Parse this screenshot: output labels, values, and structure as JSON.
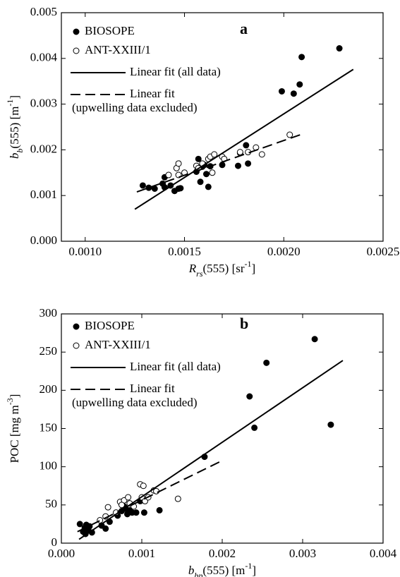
{
  "chart_data": [
    {
      "type": "scatter",
      "annotation": "a",
      "xlabel": [
        {
          "text": "R",
          "style": "italic"
        },
        {
          "text": "rs",
          "style": "sub"
        },
        {
          "text": "(555)  [sr",
          "style": "normal"
        },
        {
          "text": "-1",
          "style": "sup"
        },
        {
          "text": "]",
          "style": "normal"
        }
      ],
      "ylabel": [
        {
          "text": "b",
          "style": "italic"
        },
        {
          "text": "b",
          "style": "sub"
        },
        {
          "text": "(555)  [m",
          "style": "normal"
        },
        {
          "text": "-1",
          "style": "sup"
        },
        {
          "text": "]",
          "style": "normal"
        }
      ],
      "xlim": [
        0.00088,
        0.0025
      ],
      "xticks": [
        {
          "value": 0.001,
          "label": "0.0010"
        },
        {
          "value": 0.0015,
          "label": "0.0015"
        },
        {
          "value": 0.002,
          "label": "0.0020"
        },
        {
          "value": 0.0025,
          "label": "0.0025"
        }
      ],
      "ylim": [
        0,
        0.005
      ],
      "yticks": [
        {
          "value": 0,
          "label": "0.000"
        },
        {
          "value": 0.001,
          "label": "0.001"
        },
        {
          "value": 0.002,
          "label": "0.002"
        },
        {
          "value": 0.003,
          "label": "0.003"
        },
        {
          "value": 0.004,
          "label": "0.004"
        },
        {
          "value": 0.005,
          "label": "0.005"
        }
      ],
      "series": [
        {
          "name": "BIOSOPE",
          "marker": "filled",
          "color": "#000000",
          "x": [
            0.00129,
            0.00132,
            0.00135,
            0.00139,
            0.0014,
            0.00143,
            0.00145,
            0.00147,
            0.00148,
            0.00156,
            0.00157,
            0.00158,
            0.00159,
            0.0016,
            0.00161,
            0.00162,
            0.00163,
            0.00169,
            0.00177,
            0.00178,
            0.00181,
            0.00182,
            0.00199,
            0.00205,
            0.00208,
            0.00209,
            0.00228,
            0.0014
          ],
          "values": [
            0.00122,
            0.00117,
            0.00115,
            0.00126,
            0.00118,
            0.00122,
            0.0011,
            0.00115,
            0.00116,
            0.00152,
            0.0018,
            0.0013,
            0.00163,
            0.00167,
            0.00147,
            0.00119,
            0.00164,
            0.00167,
            0.00165,
            0.00193,
            0.0021,
            0.0017,
            0.00328,
            0.00323,
            0.00343,
            0.00403,
            0.00422,
            0.0014
          ]
        },
        {
          "name": "ANT-XXIII/1",
          "marker": "open",
          "color": "#000000",
          "x": [
            0.00142,
            0.00146,
            0.00147,
            0.00147,
            0.0015,
            0.00156,
            0.00157,
            0.00159,
            0.00162,
            0.00163,
            0.00164,
            0.00165,
            0.00169,
            0.0017,
            0.00178,
            0.00182,
            0.00186,
            0.00189,
            0.00203
          ],
          "values": [
            0.00145,
            0.0016,
            0.00145,
            0.0017,
            0.0015,
            0.00165,
            0.0016,
            0.0017,
            0.0018,
            0.00185,
            0.0015,
            0.0019,
            0.00185,
            0.0018,
            0.00195,
            0.00195,
            0.00205,
            0.0019,
            0.00233
          ]
        }
      ],
      "fits": [
        {
          "name_lines": [
            "Linear fit (all data)"
          ],
          "dash": "solid",
          "color": "#000000",
          "x": [
            0.00125,
            0.00235
          ],
          "values": [
            0.0007,
            0.00376
          ]
        },
        {
          "name_lines": [
            "Linear fit",
            "(upwelling data excluded)"
          ],
          "dash": "dashed",
          "color": "#000000",
          "x": [
            0.00126,
            0.00209
          ],
          "values": [
            0.00108,
            0.00234
          ]
        }
      ]
    },
    {
      "type": "scatter",
      "annotation": "b",
      "xlabel": [
        {
          "text": "b",
          "style": "italic"
        },
        {
          "text": "bp",
          "style": "sub"
        },
        {
          "text": "(555)  [m",
          "style": "normal"
        },
        {
          "text": "-1",
          "style": "sup"
        },
        {
          "text": "]",
          "style": "normal"
        }
      ],
      "ylabel": [
        {
          "text": "POC  [mg m",
          "style": "normal"
        },
        {
          "text": "-3",
          "style": "sup"
        },
        {
          "text": "]",
          "style": "normal"
        }
      ],
      "xlim": [
        0,
        0.004
      ],
      "xticks": [
        {
          "value": 0,
          "label": "0.000"
        },
        {
          "value": 0.001,
          "label": "0.001"
        },
        {
          "value": 0.002,
          "label": "0.002"
        },
        {
          "value": 0.003,
          "label": "0.003"
        },
        {
          "value": 0.004,
          "label": "0.004"
        }
      ],
      "ylim": [
        0,
        300
      ],
      "yticks": [
        0,
        50,
        100,
        150,
        200,
        250,
        300
      ],
      "series": [
        {
          "name": "BIOSOPE",
          "marker": "filled",
          "color": "#000000",
          "x": [
            0.00023,
            0.00027,
            0.00029,
            0.00031,
            0.00033,
            0.00035,
            0.00038,
            0.0005,
            0.00055,
            0.0006,
            0.0007,
            0.00075,
            0.00078,
            0.0008,
            0.00082,
            0.00085,
            0.00088,
            0.00093,
            0.00098,
            0.00103,
            0.00122,
            0.00178,
            0.00234,
            0.0024,
            0.00255,
            0.00315,
            0.00335,
            0.0003
          ],
          "values": [
            25,
            15,
            20,
            24,
            18,
            22,
            14,
            23,
            19,
            28,
            36,
            42,
            48,
            45,
            38,
            43,
            40,
            40,
            55,
            40,
            43,
            113,
            192,
            151,
            236,
            267,
            155,
            12
          ]
        },
        {
          "name": "ANT-XXIII/1",
          "marker": "open",
          "color": "#000000",
          "x": [
            0.00048,
            0.00055,
            0.00058,
            0.00068,
            0.00073,
            0.00078,
            0.00083,
            0.00085,
            0.0009,
            0.00098,
            0.001,
            0.00102,
            0.00104,
            0.00108,
            0.00115,
            0.00118,
            0.00145,
            0.00075
          ],
          "values": [
            30,
            35,
            47,
            40,
            54,
            56,
            60,
            52,
            48,
            77,
            60,
            75,
            55,
            60,
            69,
            68,
            58,
            50
          ]
        }
      ],
      "fits": [
        {
          "name_lines": [
            "Linear fit (all data)"
          ],
          "dash": "solid",
          "color": "#000000",
          "x": [
            0.00022,
            0.0035
          ],
          "values": [
            5,
            239
          ]
        },
        {
          "name_lines": [
            "Linear fit",
            "(upwelling data excluded)"
          ],
          "dash": "dashed",
          "color": "#000000",
          "x": [
            0.0002,
            0.00198
          ],
          "values": [
            15,
            107
          ]
        }
      ]
    }
  ]
}
